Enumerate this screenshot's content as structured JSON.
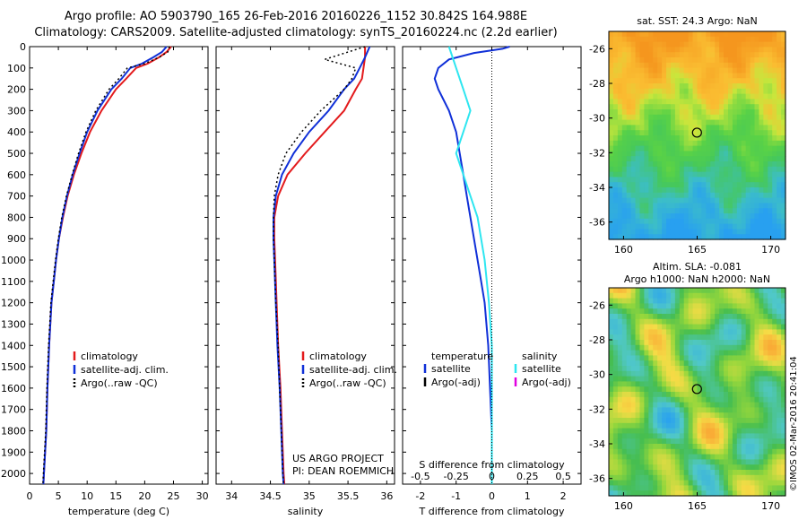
{
  "header": {
    "line1": "Argo profile: AO 5903790_165 26-Feb-2016 20160226_1152 30.842S 164.988E",
    "line2": "Climatology: CARS2009. Satellite-adjusted climatology: synTS_20160224.nc (2.2d earlier)"
  },
  "colors": {
    "climatology": "#e31a1c",
    "satellite": "#1030d8",
    "argo": "#000000",
    "salinity_sat": "#2ee6f0",
    "salinity_argo": "#e000e0"
  },
  "chart_data": [
    {
      "type": "line",
      "panel": "temperature",
      "xlabel": "temperature (deg C)",
      "xlim": [
        0,
        31
      ],
      "xticks": [
        0,
        5,
        10,
        15,
        20,
        25,
        30
      ],
      "ylim": [
        2050,
        0
      ],
      "yticks": [
        0,
        100,
        200,
        300,
        400,
        500,
        600,
        700,
        800,
        900,
        1000,
        1100,
        1200,
        1300,
        1400,
        1500,
        1600,
        1700,
        1800,
        1900,
        2000
      ],
      "legend": [
        "climatology",
        "satellite-adj. clim.",
        "Argo(..raw -QC)"
      ],
      "series": [
        {
          "name": "climatology",
          "x": [
            24.6,
            23.8,
            22.5,
            20.5,
            18.5,
            16.8,
            15,
            12.5,
            10.5,
            9,
            7.7,
            6.6,
            5.8,
            5.1,
            4.6,
            4.2,
            3.8,
            3.4,
            3.1,
            2.9,
            2.7,
            2.5,
            2.4
          ],
          "y": [
            0,
            25,
            50,
            80,
            100,
            150,
            200,
            300,
            400,
            500,
            600,
            700,
            800,
            900,
            1000,
            1100,
            1200,
            1400,
            1600,
            1800,
            1900,
            2000,
            2050
          ]
        },
        {
          "name": "satellite-adj. clim.",
          "x": [
            23.8,
            23,
            21.5,
            19.5,
            17.5,
            16,
            14.2,
            11.8,
            10,
            8.7,
            7.5,
            6.5,
            5.7,
            5.1,
            4.6,
            4.2,
            3.8,
            3.4,
            3.1,
            2.9,
            2.7,
            2.5,
            2.4
          ],
          "y": [
            0,
            25,
            50,
            80,
            100,
            150,
            200,
            300,
            400,
            500,
            600,
            700,
            800,
            900,
            1000,
            1100,
            1200,
            1400,
            1600,
            1800,
            1900,
            2000,
            2050
          ]
        },
        {
          "name": "Argo(..raw -QC)",
          "x": [
            24.3,
            24,
            22.5,
            20,
            17,
            15.5,
            13.8,
            11.5,
            9.8,
            8.5,
            7.4,
            6.4,
            5.6,
            5,
            4.5,
            4.1,
            3.7,
            3.3,
            3,
            2.8,
            2.6,
            2.4,
            2.3
          ],
          "y": [
            0,
            25,
            50,
            80,
            100,
            150,
            200,
            300,
            400,
            500,
            600,
            700,
            800,
            900,
            1000,
            1100,
            1200,
            1400,
            1600,
            1800,
            1900,
            2000,
            2050
          ]
        }
      ]
    },
    {
      "type": "line",
      "panel": "salinity",
      "xlabel": "salinity",
      "xlim": [
        33.8,
        36.1
      ],
      "xticks": [
        34,
        34.5,
        35,
        35.5,
        36
      ],
      "ylim": [
        2050,
        0
      ],
      "legend": [
        "climatology",
        "satellite-adj. clim.",
        "Argo(..raw -QC)"
      ],
      "annotation": [
        "US ARGO PROJECT",
        "PI: DEAN ROEMMICH"
      ],
      "series": [
        {
          "name": "climatology",
          "x": [
            35.72,
            35.72,
            35.7,
            35.68,
            35.6,
            35.45,
            35.2,
            34.95,
            34.72,
            34.6,
            34.55,
            34.55,
            34.56,
            34.58,
            34.6,
            34.63,
            34.65,
            34.67,
            34.68
          ],
          "y": [
            0,
            50,
            100,
            150,
            200,
            300,
            400,
            500,
            600,
            700,
            800,
            900,
            1000,
            1200,
            1400,
            1600,
            1800,
            2000,
            2050
          ]
        },
        {
          "name": "satellite-adj. clim.",
          "x": [
            35.78,
            35.72,
            35.65,
            35.58,
            35.45,
            35.25,
            35.0,
            34.8,
            34.65,
            34.57,
            34.54,
            34.54,
            34.55,
            34.57,
            34.59,
            34.62,
            34.64,
            34.66,
            34.67
          ],
          "y": [
            0,
            50,
            100,
            150,
            200,
            300,
            400,
            500,
            600,
            700,
            800,
            900,
            1000,
            1200,
            1400,
            1600,
            1800,
            2000,
            2050
          ]
        },
        {
          "name": "Argo(..raw -QC)",
          "x": [
            35.72,
            35.2,
            35.6,
            35.55,
            35.45,
            35.15,
            34.9,
            34.7,
            34.6,
            34.55,
            34.54,
            34.54,
            34.55,
            34.57,
            34.6,
            34.62,
            34.64,
            34.66,
            34.67
          ],
          "y": [
            0,
            60,
            100,
            150,
            200,
            300,
            400,
            500,
            600,
            700,
            800,
            900,
            1000,
            1200,
            1400,
            1600,
            1800,
            2000,
            2050
          ]
        }
      ]
    },
    {
      "type": "line",
      "panel": "difference",
      "xlabel": "T difference from climatology",
      "xlabel_top": "S difference from climatology",
      "xlim": [
        -2.5,
        2.5
      ],
      "xticks": [
        -2,
        -1,
        0,
        1,
        2
      ],
      "s_ticks": [
        "-0.5",
        "-0.25",
        "0",
        "0.25",
        "0.5"
      ],
      "ylim": [
        2050,
        0
      ],
      "legend_temperature_title": "temperature",
      "legend_salinity_title": "salinity",
      "legend_temperature": [
        "satellite",
        "Argo(-adj)"
      ],
      "legend_salinity": [
        "satellite",
        "Argo(-adj)"
      ],
      "series": [
        {
          "name": "temperature satellite",
          "x": [
            0.5,
            0.3,
            -0.5,
            -1.2,
            -1.5,
            -1.6,
            -1.5,
            -1.2,
            -1.0,
            -0.9,
            -0.8,
            -0.7,
            -0.6,
            -0.5,
            -0.4,
            -0.3,
            -0.2,
            -0.1,
            -0.05,
            0,
            0
          ],
          "y": [
            0,
            10,
            30,
            60,
            100,
            150,
            200,
            300,
            400,
            500,
            600,
            700,
            800,
            900,
            1000,
            1100,
            1200,
            1400,
            1600,
            1800,
            2050
          ]
        },
        {
          "name": "salinity satellite",
          "x": [
            -0.3,
            -0.25,
            -0.2,
            -0.15,
            -0.2,
            -0.25,
            -0.2,
            -0.15,
            -0.1,
            -0.05,
            -0.02,
            0,
            0,
            0
          ],
          "y": [
            0,
            100,
            200,
            300,
            400,
            500,
            600,
            700,
            800,
            1000,
            1200,
            1400,
            1800,
            2050
          ]
        }
      ]
    },
    {
      "type": "heatmap",
      "panel": "SST map",
      "title": "sat. SST: 24.3  Argo: NaN",
      "xticks": [
        160,
        165,
        170
      ],
      "yticks": [
        -26,
        -28,
        -30,
        -32,
        -34,
        -36
      ],
      "xlim": [
        159,
        171
      ],
      "ylim": [
        -37,
        -25
      ],
      "argo_position": {
        "lon": 164.988,
        "lat": -30.842
      }
    },
    {
      "type": "heatmap",
      "panel": "SLA map",
      "title_line1": "Altim. SLA: -0.081",
      "title_line2": "Argo h1000: NaN h2000: NaN",
      "xticks": [
        160,
        165,
        170
      ],
      "yticks": [
        -26,
        -28,
        -30,
        -32,
        -34,
        -36
      ],
      "xlim": [
        159,
        171
      ],
      "ylim": [
        -37,
        -25
      ],
      "argo_position": {
        "lon": 164.988,
        "lat": -30.842
      }
    }
  ],
  "footer": {
    "credit": "©IMOS 02-Mar-2016 20:41:04"
  }
}
